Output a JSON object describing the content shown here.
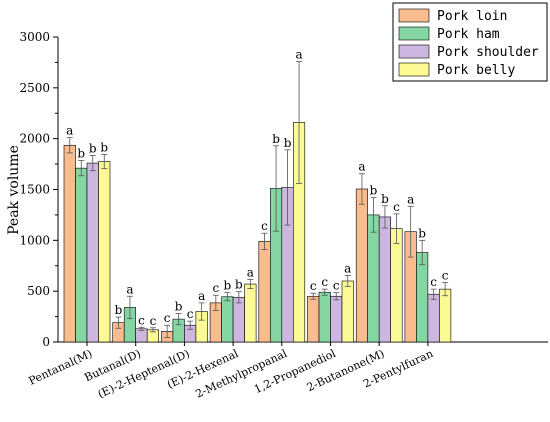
{
  "chart_data": {
    "type": "bar",
    "title": "",
    "xlabel": "",
    "ylabel": "Peak volume",
    "ylim": [
      0,
      3000
    ],
    "yticks": [
      0,
      500,
      1000,
      1500,
      2000,
      2500,
      3000
    ],
    "grid": false,
    "legend_position": "top-right",
    "categories": [
      "Pentanal(M)",
      "Butanal(D)",
      "(E)-2-Heptenal(D)",
      "(E)-2-Hexenal",
      "2-Methylpropanal",
      "1,2-Propanediol",
      "2-Butanone(M)",
      "2-Pentylfuran"
    ],
    "series": [
      {
        "name": "Pork loin",
        "color": "#f9bc8f",
        "values": [
          1935,
          190,
          105,
          385,
          990,
          450,
          1505,
          1085
        ],
        "errors": [
          75,
          55,
          60,
          75,
          80,
          30,
          150,
          250
        ],
        "labels": [
          "a",
          "b",
          "c",
          "c",
          "c",
          "c",
          "a",
          "a"
        ]
      },
      {
        "name": "Pork ham",
        "color": "#85d6a3",
        "values": [
          1710,
          340,
          225,
          445,
          1510,
          490,
          1250,
          880
        ],
        "errors": [
          75,
          110,
          55,
          40,
          420,
          30,
          170,
          120
        ],
        "labels": [
          "b",
          "a",
          "b",
          "b",
          "b",
          "c",
          "b",
          "b"
        ]
      },
      {
        "name": "Pork shoulder",
        "color": "#cdb6e0",
        "values": [
          1760,
          130,
          165,
          440,
          1520,
          450,
          1230,
          470
        ],
        "errors": [
          75,
          15,
          40,
          55,
          370,
          35,
          110,
          50
        ],
        "labels": [
          "b",
          "c",
          "c",
          "b",
          "b",
          "c",
          "b",
          "c"
        ]
      },
      {
        "name": "Pork belly",
        "color": "#fbfa95",
        "values": [
          1775,
          120,
          300,
          570,
          2160,
          600,
          1115,
          520
        ],
        "errors": [
          70,
          20,
          85,
          45,
          600,
          55,
          145,
          65
        ],
        "labels": [
          "b",
          "c",
          "a",
          "a",
          "a",
          "a",
          "c",
          "c"
        ]
      }
    ]
  }
}
